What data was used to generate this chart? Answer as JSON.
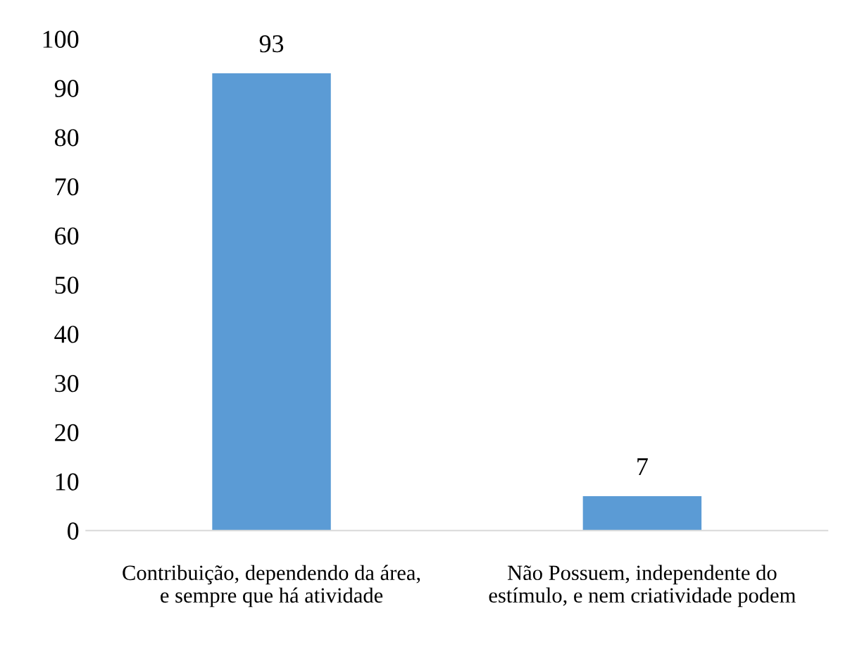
{
  "chart_data": {
    "type": "bar",
    "categories": [
      "Contribuição, dependendo da área, e sempre que há atividade",
      "Não Possuem, independente do estímulo, e nem criatividade podem"
    ],
    "values": [
      93,
      7
    ],
    "color": "#5b9bd5",
    "ylim": [
      0,
      100
    ],
    "yticks": [
      0,
      10,
      20,
      30,
      40,
      50,
      60,
      70,
      80,
      90,
      100
    ],
    "data_labels": true,
    "grid": false
  }
}
